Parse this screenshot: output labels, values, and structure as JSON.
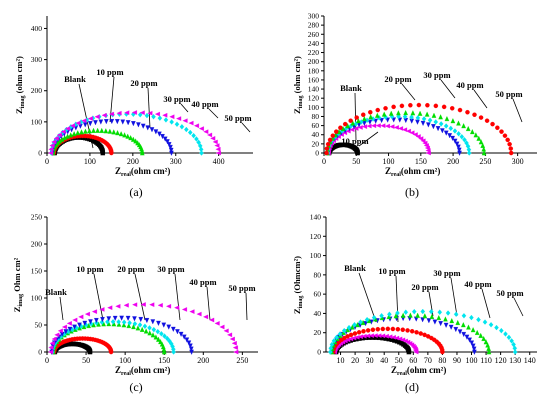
{
  "chart_data": [
    {
      "type": "scatter",
      "panel_label": "(a)",
      "xlabel": "Z",
      "xlabel_sub": "real",
      "xlabel_unit": "(ohm cm²)",
      "ylabel": "Z",
      "ylabel_sub": "imag",
      "ylabel_unit": "(ohm cm²)",
      "xlim": [
        0,
        480
      ],
      "ylim": [
        0,
        440
      ],
      "xticks": [
        "0",
        "100",
        "200",
        "300",
        "400"
      ],
      "yticks": [
        "0",
        "100",
        "200",
        "300",
        "400"
      ],
      "series": [
        {
          "name": "Blank",
          "marker": "square",
          "color": "#000000",
          "start": 18,
          "end": 130,
          "peak": 50
        },
        {
          "name": "10 ppm",
          "marker": "circle",
          "color": "#ff0000",
          "start": 16,
          "end": 150,
          "peak": 55
        },
        {
          "name": "20 ppm",
          "marker": "triangle",
          "color": "#00dd00",
          "start": 14,
          "end": 222,
          "peak": 72
        },
        {
          "name": "30 ppm",
          "marker": "tri-down",
          "color": "#1010e0",
          "start": 12,
          "end": 290,
          "peak": 102
        },
        {
          "name": "40 ppm",
          "marker": "diamond",
          "color": "#00e5ee",
          "start": 10,
          "end": 360,
          "peak": 125
        },
        {
          "name": "50 ppm",
          "marker": "tri-left",
          "color": "#ee00ee",
          "start": 9,
          "end": 400,
          "peak": 130
        }
      ]
    },
    {
      "type": "scatter",
      "panel_label": "(b)",
      "xlabel": "Z",
      "xlabel_sub": "real",
      "xlabel_unit": "(ohm cm²)",
      "ylabel": "Z",
      "ylabel_sub": "imag",
      "ylabel_unit": "(ohm cm²)",
      "xlim": [
        0,
        330
      ],
      "ylim": [
        0,
        300
      ],
      "xticks": [
        "0",
        "50",
        "100",
        "150",
        "200",
        "250",
        "300"
      ],
      "yticks": [
        "0",
        "20",
        "40",
        "60",
        "80",
        "100",
        "120",
        "140",
        "160",
        "180",
        "200",
        "220",
        "240",
        "260",
        "280",
        "300"
      ],
      "series": [
        {
          "name": "Blank",
          "marker": "square",
          "color": "#000000",
          "start": 8,
          "end": 52,
          "peak": 18
        },
        {
          "name": "10 ppm",
          "marker": "tri-left",
          "color": "#ee00ee",
          "start": 7,
          "end": 162,
          "peak": 60
        },
        {
          "name": "20 ppm",
          "marker": "tri-down",
          "color": "#1010e0",
          "start": 6,
          "end": 210,
          "peak": 73
        },
        {
          "name": "30 ppm",
          "marker": "diamond",
          "color": "#00e5ee",
          "start": 6,
          "end": 225,
          "peak": 80
        },
        {
          "name": "40 ppm",
          "marker": "triangle",
          "color": "#00dd00",
          "start": 5,
          "end": 248,
          "peak": 88
        },
        {
          "name": "50 ppm",
          "marker": "circle",
          "color": "#ff0000",
          "start": 4,
          "end": 290,
          "peak": 105
        }
      ]
    },
    {
      "type": "scatter",
      "panel_label": "(c)",
      "xlabel": "Z",
      "xlabel_sub": "real",
      "xlabel_unit": "(ohm cm²)",
      "ylabel": "Z",
      "ylabel_sub": "imag",
      "ylabel_unit": "Ohm cm²",
      "xlim": [
        0,
        270
      ],
      "ylim": [
        0,
        250
      ],
      "xticks": [
        "0",
        "50",
        "100",
        "150",
        "200",
        "250"
      ],
      "yticks": [
        "0",
        "50",
        "100",
        "150",
        "200",
        "250"
      ],
      "series": [
        {
          "name": "Blank",
          "marker": "square",
          "color": "#000000",
          "start": 10,
          "end": 55,
          "peak": 15
        },
        {
          "name": "10 ppm",
          "marker": "circle",
          "color": "#ff0000",
          "start": 9,
          "end": 82,
          "peak": 25
        },
        {
          "name": "20 ppm",
          "marker": "triangle",
          "color": "#00dd00",
          "start": 8,
          "end": 150,
          "peak": 52
        },
        {
          "name": "30 ppm",
          "marker": "diamond",
          "color": "#00e5ee",
          "start": 7,
          "end": 162,
          "peak": 56
        },
        {
          "name": "40 ppm",
          "marker": "tri-down",
          "color": "#1010e0",
          "start": 6,
          "end": 185,
          "peak": 63
        },
        {
          "name": "50 ppm",
          "marker": "tri-left",
          "color": "#ee00ee",
          "start": 5,
          "end": 242,
          "peak": 88
        }
      ]
    },
    {
      "type": "scatter",
      "panel_label": "(d)",
      "xlabel": "Z",
      "xlabel_sub": "real",
      "xlabel_unit": "(ohm cm²)",
      "ylabel": "Z",
      "ylabel_sub": "imag",
      "ylabel_unit": "(Ohmcm²)",
      "xlim": [
        0,
        145
      ],
      "ylim": [
        0,
        140
      ],
      "xticks": [
        "10",
        "20",
        "30",
        "40",
        "50",
        "60",
        "70",
        "80",
        "90",
        "100",
        "110",
        "120",
        "130",
        "140"
      ],
      "yticks": [
        "0",
        "20",
        "40",
        "60",
        "80",
        "100",
        "120",
        "140"
      ],
      "series": [
        {
          "name": "Blank",
          "marker": "square",
          "color": "#000000",
          "start": 7,
          "end": 57,
          "peak": 15
        },
        {
          "name": "10 ppm",
          "marker": "tri-left",
          "color": "#ee00ee",
          "start": 6,
          "end": 62,
          "peak": 17
        },
        {
          "name": "20 ppm",
          "marker": "circle",
          "color": "#ff0000",
          "start": 5,
          "end": 80,
          "peak": 24
        },
        {
          "name": "30 ppm",
          "marker": "tri-down",
          "color": "#1010e0",
          "start": 4,
          "end": 102,
          "peak": 35
        },
        {
          "name": "40 ppm",
          "marker": "triangle",
          "color": "#00dd00",
          "start": 4,
          "end": 112,
          "peak": 38
        },
        {
          "name": "50 ppm",
          "marker": "diamond",
          "color": "#00e5ee",
          "start": 3,
          "end": 130,
          "peak": 42
        }
      ]
    }
  ]
}
